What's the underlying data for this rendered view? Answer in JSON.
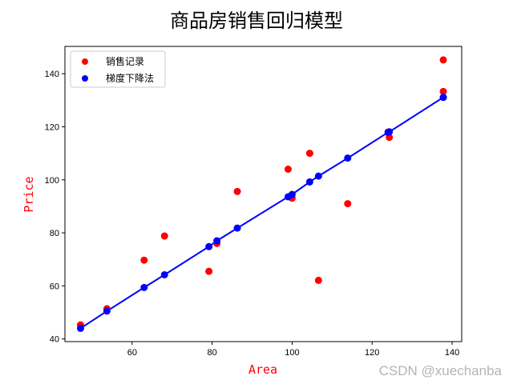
{
  "chart_data": {
    "type": "scatter",
    "title": "商品房销售回归模型",
    "xlabel": "Area",
    "ylabel": "Price",
    "label_color": "#ff0000",
    "xlim": [
      43.2,
      142.4
    ],
    "ylim": [
      39.0,
      150.3
    ],
    "xticks": [
      60,
      80,
      100,
      120,
      140
    ],
    "yticks": [
      40,
      60,
      80,
      100,
      120,
      140
    ],
    "grid": false,
    "legend_position": "upper left",
    "series": [
      {
        "name": "销售记录",
        "kind": "scatter",
        "color": "#ff0000",
        "x": [
          47.1,
          53.7,
          63.0,
          68.1,
          79.2,
          81.2,
          86.3,
          99.0,
          100.0,
          104.4,
          106.6,
          113.9,
          124.0,
          124.3,
          137.8,
          137.8
        ],
        "y": [
          45.3,
          51.4,
          69.7,
          78.8,
          65.5,
          76.0,
          95.6,
          104.0,
          93.1,
          110.0,
          62.1,
          91.0,
          118.0,
          116.0,
          133.3,
          145.2
        ]
      },
      {
        "name": "梯度下降法",
        "kind": "scatter+line",
        "color": "#0000ff",
        "x": [
          47.1,
          53.7,
          63.0,
          68.1,
          79.2,
          81.2,
          86.3,
          99.0,
          100.0,
          104.4,
          106.6,
          113.9,
          124.0,
          124.3,
          137.8,
          137.8
        ],
        "y": [
          44.0,
          50.5,
          59.4,
          64.2,
          74.8,
          77.0,
          81.8,
          93.6,
          94.5,
          99.2,
          101.4,
          108.2,
          117.9,
          118.1,
          131.1,
          131.1
        ]
      }
    ]
  },
  "legend": {
    "items": [
      {
        "label": "销售记录",
        "color": "#ff0000"
      },
      {
        "label": "梯度下降法",
        "color": "#0000ff"
      }
    ]
  },
  "watermark": "CSDN @xuechanba"
}
